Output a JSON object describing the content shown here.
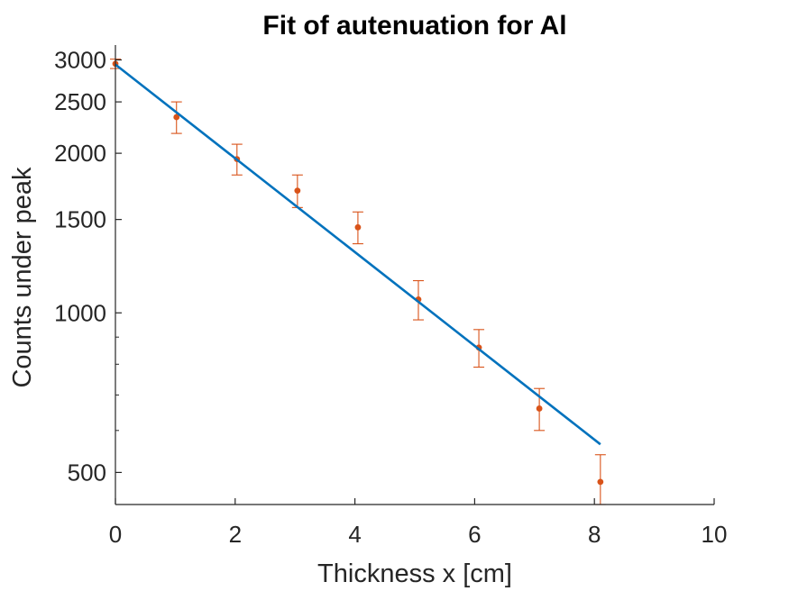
{
  "chart_data": {
    "type": "scatter",
    "title": "Fit of autenuation for Al",
    "xlabel": "Thickness x [cm]",
    "ylabel": "Counts under peak",
    "xlim": [
      0,
      10
    ],
    "ylim": [
      435,
      3200
    ],
    "yscale": "log",
    "grid": false,
    "legend": "none",
    "xticks": [
      0,
      2,
      4,
      6,
      8,
      10
    ],
    "xtick_labels": [
      "0",
      "2",
      "4",
      "6",
      "8",
      "10"
    ],
    "yticks": [
      500,
      1000,
      1500,
      2000,
      2500,
      3000
    ],
    "ytick_labels": [
      "500",
      "1000",
      "1500",
      "2000",
      "2500",
      "3000"
    ],
    "series": [
      {
        "kind": "errorbar",
        "color": "#D95319",
        "x": [
          0.0,
          1.02,
          2.03,
          3.04,
          4.05,
          5.06,
          6.07,
          7.08,
          8.1
        ],
        "y": [
          2950,
          2340,
          1950,
          1700,
          1450,
          1060,
          860,
          660,
          480
        ],
        "err": [
          60,
          160,
          130,
          120,
          100,
          90,
          70,
          60,
          60
        ]
      },
      {
        "kind": "line",
        "color": "#0072BD",
        "x": [
          0.0,
          8.1
        ],
        "y": [
          2940,
          565
        ]
      }
    ]
  }
}
